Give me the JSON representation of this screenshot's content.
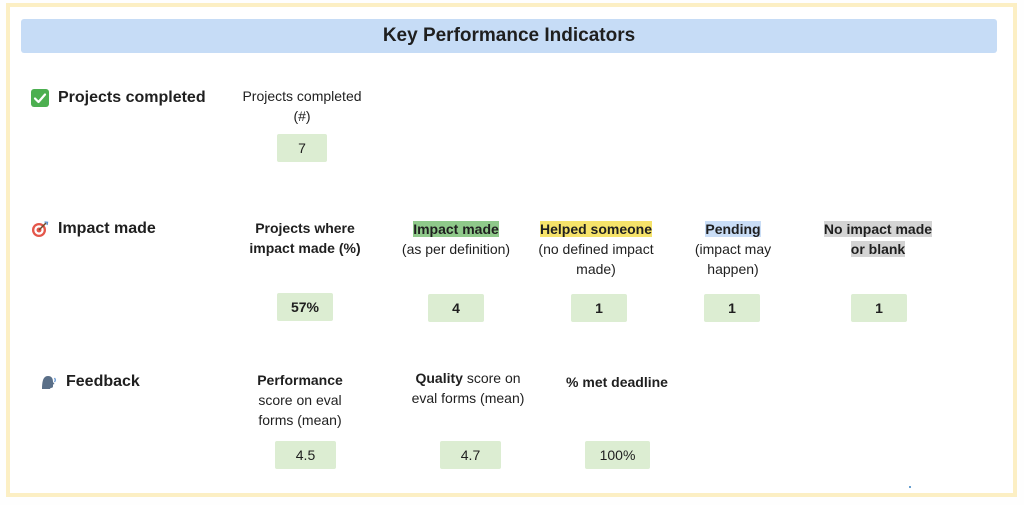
{
  "header": {
    "title": "Key Performance Indicators"
  },
  "sections": {
    "projects": {
      "label": "Projects completed",
      "metric_label": "Projects completed (#)",
      "metric_value": "7"
    },
    "impact": {
      "label": "Impact made",
      "pct": {
        "title": "Projects where impact made (%)",
        "value": "57%"
      },
      "made": {
        "title": "Impact made",
        "sub": "(as per definition)",
        "value": "4"
      },
      "helped": {
        "title": "Helped someone",
        "sub": "(no defined impact made)",
        "value": "1"
      },
      "pending": {
        "title": "Pending",
        "sub": "(impact may happen)",
        "value": "1"
      },
      "none": {
        "title": "No impact made or blank",
        "value": "1"
      }
    },
    "feedback": {
      "label": "Feedback",
      "performance": {
        "title": "Performance",
        "sub": "score on eval forms (mean)",
        "value": "4.5"
      },
      "quality": {
        "title": "Quality",
        "sub": "score on eval forms (mean)",
        "value": "4.7"
      },
      "deadline": {
        "title": "% met deadline",
        "value": "100%"
      }
    }
  },
  "colors": {
    "header_bg": "#c6dcf6",
    "frame_border": "#fcefc4",
    "value_bg": "#dcedd2",
    "impact_highlight": "#8fc98a",
    "helped_highlight": "#f6e36a",
    "pending_highlight": "#c9ddf6",
    "none_highlight": "#d4d4d4"
  }
}
